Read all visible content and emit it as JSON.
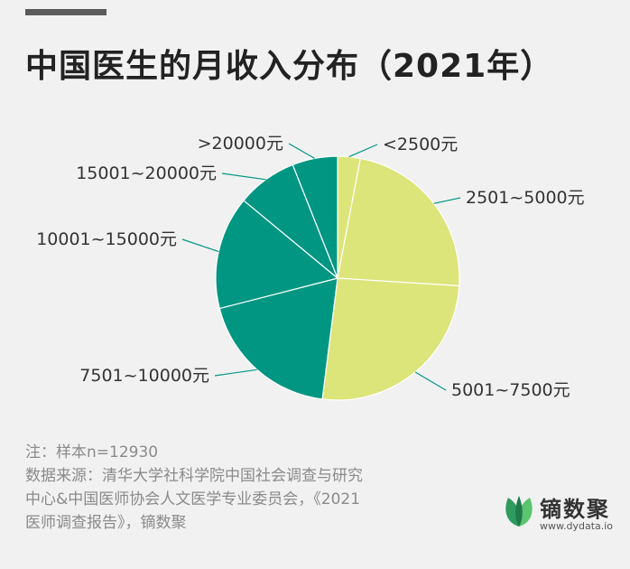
{
  "title": "中国医生的月收入分布（2021年）",
  "notes": {
    "sample": "注：样本n=12930",
    "source_line1": "数据来源：清华大学社科学院中国社会调查与研究",
    "source_line2": "中心&中国医师协会人文医学专业委员会，《2021",
    "source_line3": "医师调查报告》，镝数聚"
  },
  "brand": {
    "name": "镝数聚",
    "url": "www.dydata.io",
    "leaf_colors": [
      "#2e9b5d",
      "#5cc46f",
      "#1f7a4a"
    ]
  },
  "colors": {
    "light": "#dce57a",
    "dark": "#009682",
    "label": "#333333",
    "leader": "#009682"
  },
  "chart_data": {
    "type": "pie",
    "title": "中国医生的月收入分布（2021年）",
    "start": "12 o'clock, clockwise",
    "slices": [
      {
        "label": "<2500元",
        "value": 3.0,
        "color": "#dce57a"
      },
      {
        "label": "2501~5000元",
        "value": 23.0,
        "color": "#dce57a"
      },
      {
        "label": "5001~7500元",
        "value": 26.0,
        "color": "#dce57a"
      },
      {
        "label": "7501~10000元",
        "value": 19.0,
        "color": "#009682"
      },
      {
        "label": "10001~15000元",
        "value": 15.0,
        "color": "#009682"
      },
      {
        "label": "15001~20000元",
        "value": 8.0,
        "color": "#009682"
      },
      {
        "label": ">20000元",
        "value": 6.0,
        "color": "#009682"
      }
    ]
  }
}
